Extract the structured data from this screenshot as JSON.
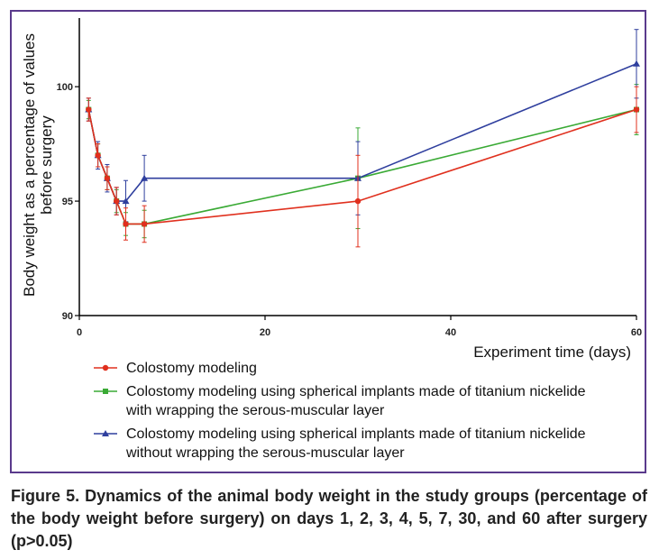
{
  "chart_data": {
    "type": "line",
    "xlabel": "Experiment time (days)",
    "ylabel": "Body weight as a percentage of values before surgery",
    "ylabel_lines": [
      "Body weight as a percentage of values",
      "before surgery"
    ],
    "xlim": [
      0,
      60
    ],
    "ylim": [
      90,
      103
    ],
    "xticks": [
      0,
      20,
      40,
      60
    ],
    "yticks": [
      90,
      95,
      100
    ],
    "grid": false,
    "legend_position": "bottom",
    "series": [
      {
        "name": "Colostomy modeling",
        "name_lines": [
          "Colostomy modeling"
        ],
        "color": "#e0301e",
        "marker": "circle",
        "x": [
          1,
          2,
          3,
          4,
          5,
          7,
          30,
          60
        ],
        "y": [
          99,
          97,
          96,
          95,
          94,
          94,
          95,
          99
        ],
        "err": [
          0.5,
          0.5,
          0.5,
          0.6,
          0.7,
          0.8,
          2.0,
          1.0
        ]
      },
      {
        "name": "Colostomy modeling using spherical implants made of titanium nickelide with wrapping the serous-muscular layer",
        "name_lines": [
          "Colostomy modeling using spherical implants made of titanium nickelide",
          "with wrapping the serous-muscular layer"
        ],
        "color": "#3aaa35",
        "marker": "square",
        "x": [
          1,
          2,
          3,
          4,
          5,
          7,
          30,
          60
        ],
        "y": [
          99,
          97,
          96,
          95,
          94,
          94,
          96,
          99
        ],
        "err": [
          0.4,
          0.5,
          0.5,
          0.5,
          0.5,
          0.6,
          2.2,
          1.1
        ]
      },
      {
        "name": "Colostomy modeling using spherical implants made of titanium nickelide without wrapping the serous-muscular layer",
        "name_lines": [
          "Colostomy modeling using spherical implants made of titanium nickelide",
          "without wrapping the serous-muscular layer"
        ],
        "color": "#2f3f9e",
        "marker": "triangle",
        "x": [
          1,
          2,
          3,
          4,
          5,
          7,
          30,
          60
        ],
        "y": [
          99,
          97,
          96,
          95,
          95,
          96,
          96,
          101
        ],
        "err": [
          0.5,
          0.6,
          0.6,
          0.6,
          0.9,
          1.0,
          1.6,
          1.5
        ]
      }
    ]
  },
  "caption": "Figure 5. Dynamics of the animal body weight in the study groups (percentage of the body weight before surgery) on days 1, 2, 3, 4, 5, 7, 30, and 60 after surgery (p>0.05)"
}
